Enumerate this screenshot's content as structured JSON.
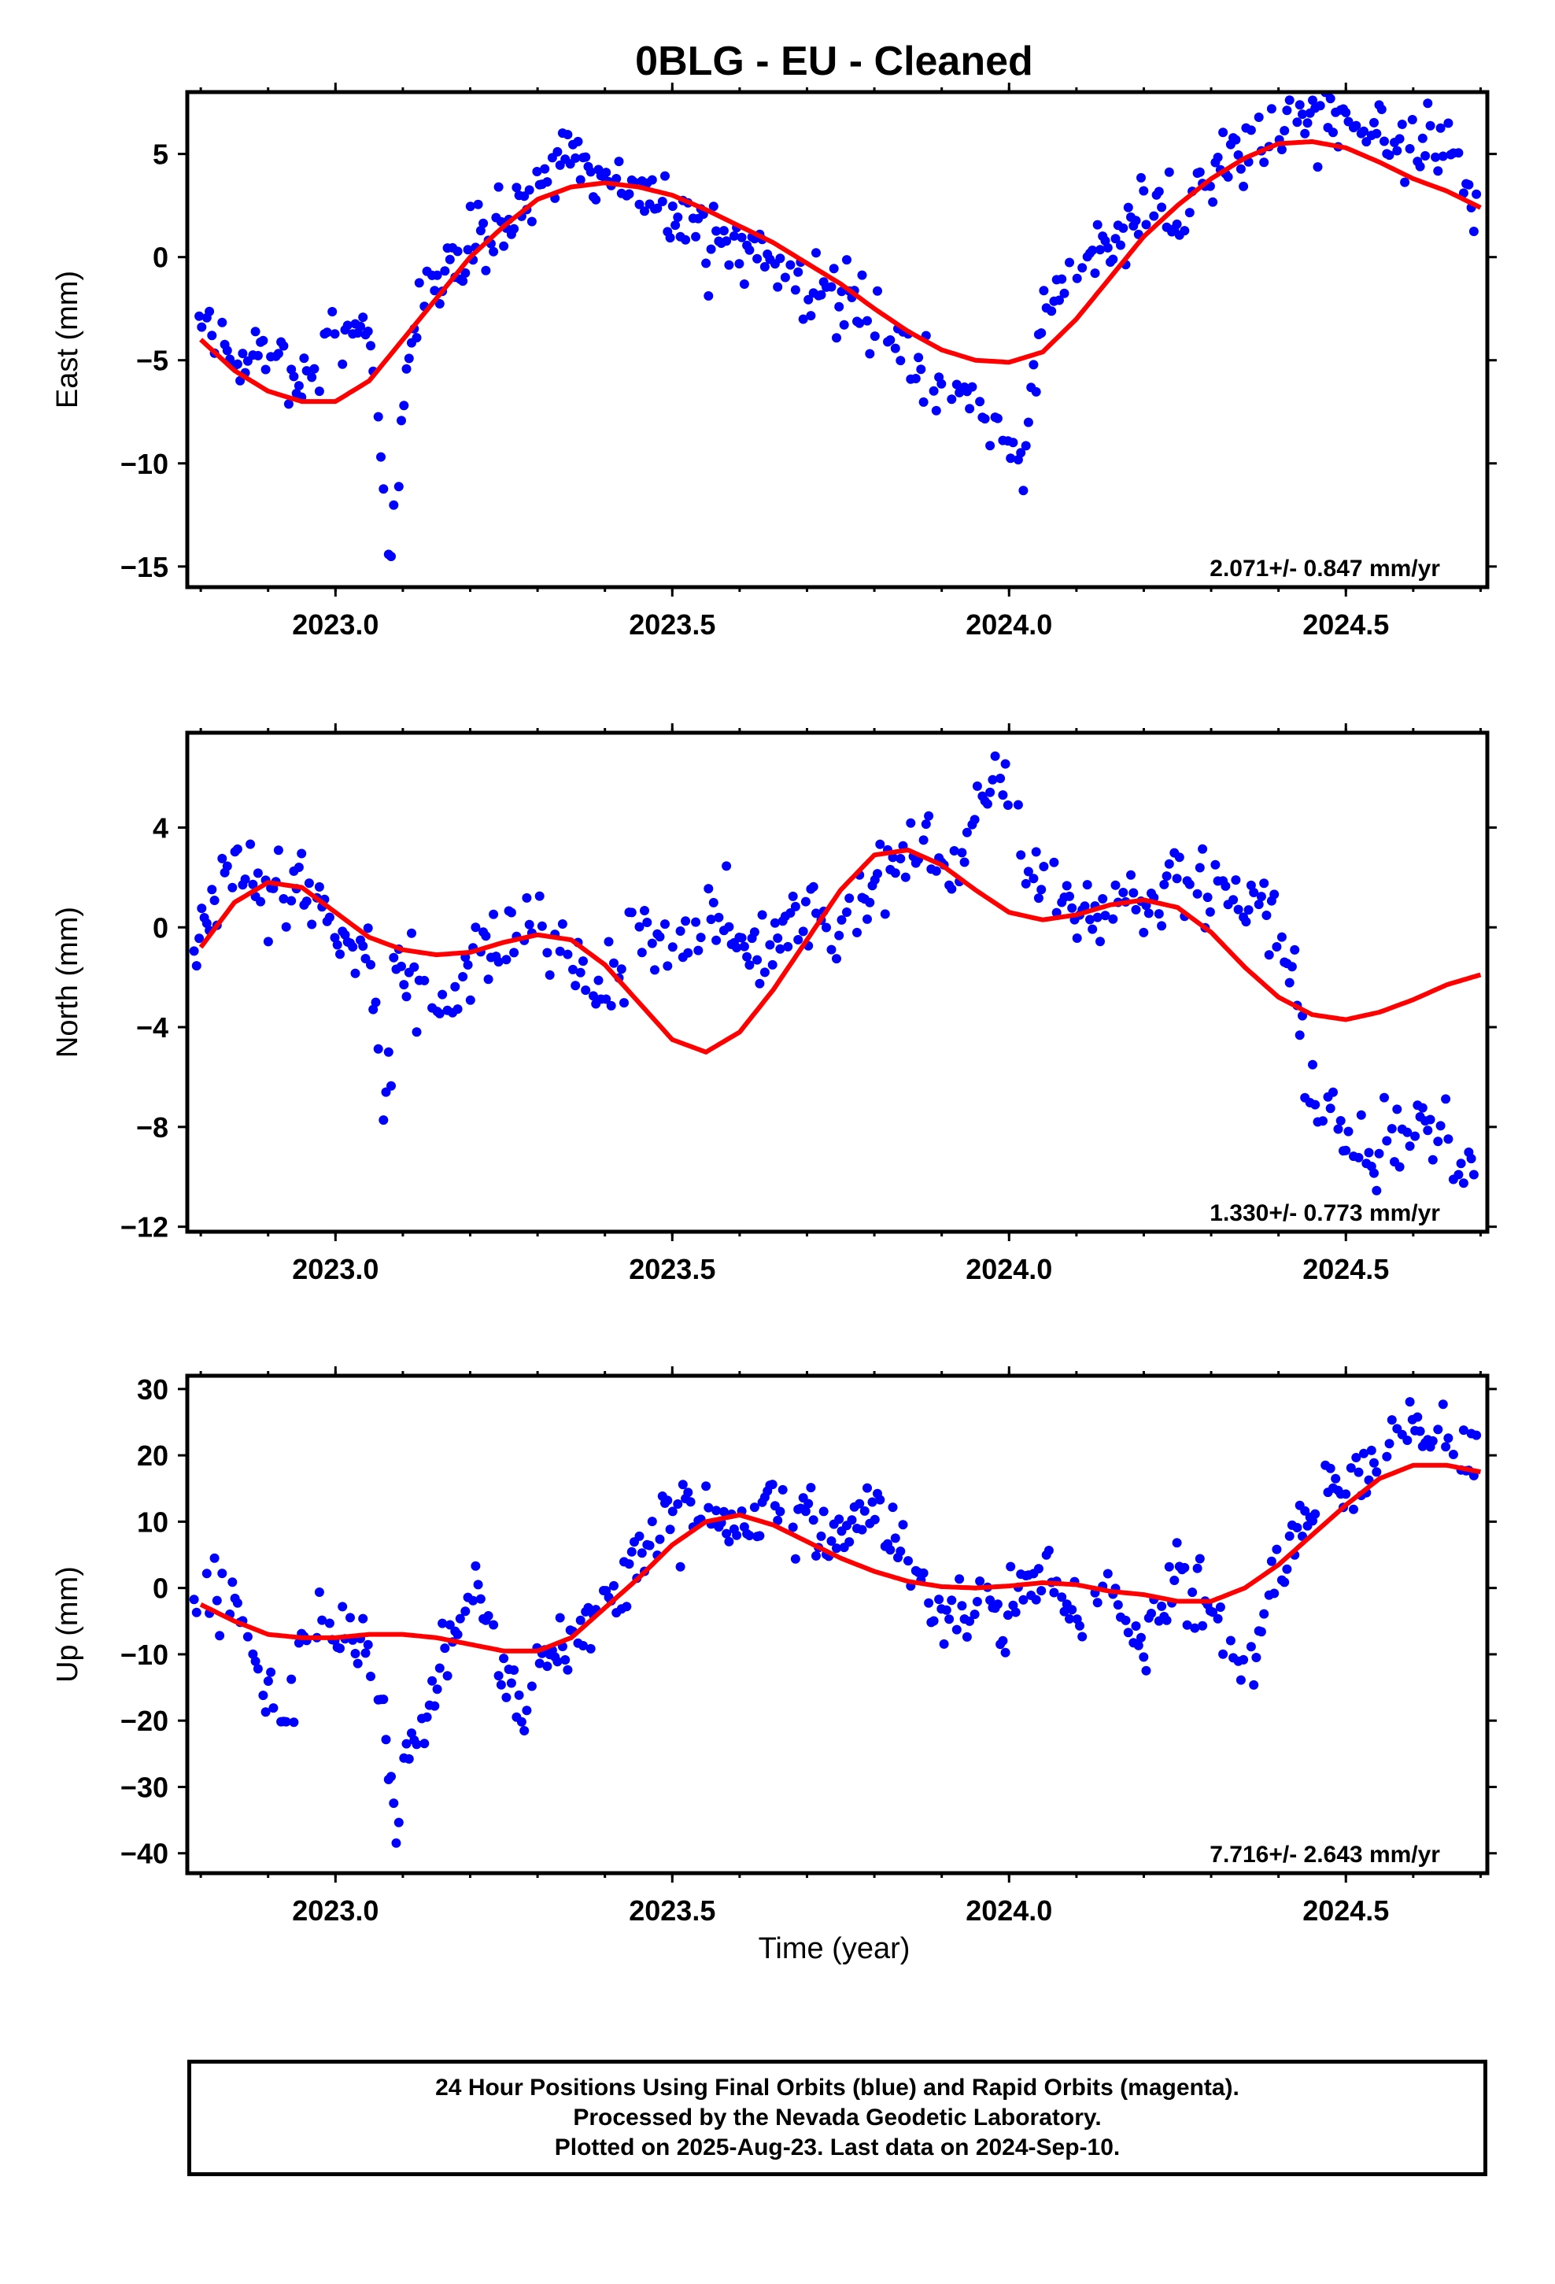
{
  "figure": {
    "title": "0BLG  - EU - Cleaned",
    "xlabel": "Time (year)",
    "colors": {
      "data_points": "#0000ff",
      "model_fit": "#ff0000",
      "frame": "#000000"
    }
  },
  "chart_data": [
    {
      "type": "scatter",
      "name": "east",
      "ylabel": "East (mm)",
      "rate_text": "2.071+/- 0.847 mm/yr",
      "xlim": [
        2022.78,
        2024.71
      ],
      "ylim": [
        -16,
        8
      ],
      "xticks": [
        "2023.0",
        "2023.5",
        "2024.0",
        "2024.5"
      ],
      "yticks": [
        "5",
        "0",
        "−5",
        "−10",
        "−15"
      ],
      "series": [
        {
          "values": {
            "x": [
              2022.8,
              2022.85,
              2022.9,
              2022.95,
              2023.0,
              2023.05,
              2023.08,
              2023.12,
              2023.16,
              2023.2,
              2023.25,
              2023.3,
              2023.35,
              2023.4,
              2023.45,
              2023.5,
              2023.55,
              2023.6,
              2023.65,
              2023.7,
              2023.75,
              2023.8,
              2023.85,
              2023.9,
              2023.93,
              2023.97,
              2024.0,
              2024.02,
              2024.05,
              2024.1,
              2024.15,
              2024.2,
              2024.25,
              2024.3,
              2024.35,
              2024.4,
              2024.45,
              2024.5,
              2024.55,
              2024.6,
              2024.65,
              2024.7
            ],
            "y": [
              -3.0,
              -5.0,
              -4.5,
              -6.0,
              -3.5,
              -3.5,
              -14.5,
              -2.0,
              -1.0,
              0.5,
              2.0,
              3.5,
              4.5,
              3.5,
              3.0,
              2.0,
              1.5,
              0.5,
              0.0,
              -1.0,
              -2.0,
              -3.0,
              -4.0,
              -6.0,
              -6.5,
              -7.5,
              -9.0,
              -10.5,
              -2.5,
              -0.5,
              1.0,
              2.5,
              2.5,
              3.5,
              5.0,
              6.5,
              7.0,
              6.5,
              6.0,
              5.5,
              5.0,
              2.0
            ]
          }
        },
        {
          "name": "model",
          "values": {
            "x": [
              2022.8,
              2022.85,
              2022.9,
              2022.95,
              2023.0,
              2023.05,
              2023.1,
              2023.15,
              2023.2,
              2023.25,
              2023.3,
              2023.35,
              2023.4,
              2023.45,
              2023.5,
              2023.55,
              2023.6,
              2023.65,
              2023.7,
              2023.75,
              2023.8,
              2023.85,
              2023.9,
              2023.95,
              2024.0,
              2024.05,
              2024.1,
              2024.15,
              2024.2,
              2024.25,
              2024.3,
              2024.35,
              2024.4,
              2024.45,
              2024.5,
              2024.55,
              2024.6,
              2024.65,
              2024.7
            ],
            "y": [
              -4.0,
              -5.5,
              -6.5,
              -7.0,
              -7.0,
              -6.0,
              -4.0,
              -2.0,
              0.0,
              1.5,
              2.8,
              3.4,
              3.6,
              3.4,
              3.0,
              2.3,
              1.5,
              0.7,
              -0.3,
              -1.3,
              -2.5,
              -3.6,
              -4.5,
              -5.0,
              -5.1,
              -4.6,
              -3.0,
              -1.0,
              1.0,
              2.5,
              3.8,
              4.8,
              5.5,
              5.6,
              5.3,
              4.6,
              3.8,
              3.2,
              2.4
            ]
          }
        }
      ]
    },
    {
      "type": "scatter",
      "name": "north",
      "ylabel": "North (mm)",
      "rate_text": "1.330+/- 0.773 mm/yr",
      "xlim": [
        2022.78,
        2024.71
      ],
      "ylim": [
        -12.2,
        7.8
      ],
      "xticks": [
        "2023.0",
        "2023.5",
        "2024.0",
        "2024.5"
      ],
      "yticks": [
        "4",
        "0",
        "−4",
        "−8",
        "−12"
      ],
      "series": [
        {
          "values": {
            "x": [
              2022.8,
              2022.85,
              2022.9,
              2022.95,
              2023.0,
              2023.05,
              2023.07,
              2023.1,
              2023.15,
              2023.2,
              2023.25,
              2023.3,
              2023.35,
              2023.4,
              2023.45,
              2023.5,
              2023.55,
              2023.6,
              2023.65,
              2023.7,
              2023.75,
              2023.8,
              2023.85,
              2023.9,
              2023.95,
              2023.98,
              2024.0,
              2024.05,
              2024.1,
              2024.15,
              2024.2,
              2024.25,
              2024.3,
              2024.35,
              2024.4,
              2024.45,
              2024.5,
              2024.55,
              2024.6,
              2024.65,
              2024.7
            ],
            "y": [
              0.0,
              2.5,
              1.5,
              2.0,
              0.0,
              -1.0,
              -6.0,
              -1.0,
              -4.5,
              -1.0,
              -0.5,
              0.5,
              -1.5,
              -2.0,
              0.0,
              -1.5,
              0.5,
              -1.0,
              -0.5,
              0.5,
              0.0,
              1.5,
              3.0,
              2.5,
              4.0,
              6.5,
              5.0,
              1.0,
              0.5,
              0.0,
              1.0,
              1.5,
              1.5,
              0.5,
              0.5,
              -6.5,
              -8.0,
              -9.0,
              -7.5,
              -8.5,
              -9.5
            ]
          }
        },
        {
          "name": "model",
          "values": {
            "x": [
              2022.8,
              2022.85,
              2022.9,
              2022.95,
              2023.0,
              2023.05,
              2023.1,
              2023.15,
              2023.2,
              2023.25,
              2023.3,
              2023.35,
              2023.4,
              2023.45,
              2023.5,
              2023.55,
              2023.6,
              2023.65,
              2023.7,
              2023.75,
              2023.8,
              2023.85,
              2023.9,
              2023.95,
              2024.0,
              2024.05,
              2024.1,
              2024.15,
              2024.2,
              2024.25,
              2024.3,
              2024.35,
              2024.4,
              2024.45,
              2024.5,
              2024.55,
              2024.6,
              2024.65,
              2024.7
            ],
            "y": [
              -0.8,
              1.0,
              1.8,
              1.6,
              0.6,
              -0.4,
              -0.9,
              -1.1,
              -1.0,
              -0.6,
              -0.3,
              -0.5,
              -1.5,
              -3.0,
              -4.5,
              -5.0,
              -4.2,
              -2.5,
              -0.5,
              1.5,
              2.9,
              3.1,
              2.5,
              1.5,
              0.6,
              0.3,
              0.5,
              0.9,
              1.1,
              0.8,
              -0.2,
              -1.6,
              -2.8,
              -3.5,
              -3.7,
              -3.4,
              -2.9,
              -2.3,
              -1.9
            ]
          }
        }
      ]
    },
    {
      "type": "scatter",
      "name": "up",
      "ylabel": "Up (mm)",
      "rate_text": "7.716+/- 2.643 mm/yr",
      "xlim": [
        2022.78,
        2024.71
      ],
      "ylim": [
        -43,
        32
      ],
      "xticks": [
        "2023.0",
        "2023.5",
        "2024.0",
        "2024.5"
      ],
      "yticks": [
        "30",
        "20",
        "10",
        "0",
        "−10",
        "−20",
        "−30",
        "−40"
      ],
      "series": [
        {
          "values": {
            "x": [
              2022.8,
              2022.85,
              2022.88,
              2022.92,
              2022.95,
              2023.0,
              2023.03,
              2023.07,
              2023.09,
              2023.1,
              2023.15,
              2023.2,
              2023.25,
              2023.28,
              2023.3,
              2023.35,
              2023.4,
              2023.45,
              2023.5,
              2023.55,
              2023.6,
              2023.65,
              2023.7,
              2023.75,
              2023.8,
              2023.85,
              2023.9,
              2023.95,
              2024.0,
              2024.05,
              2024.1,
              2024.15,
              2024.2,
              2024.25,
              2024.3,
              2024.35,
              2024.4,
              2024.45,
              2024.5,
              2024.55,
              2024.6,
              2024.65,
              2024.7
            ],
            "y": [
              0,
              -2,
              -10,
              -22,
              -8,
              -5,
              -8,
              -15,
              -40,
              -30,
              -12,
              0,
              -10,
              -18,
              -12,
              -8,
              -3,
              5,
              10,
              12,
              8,
              15,
              10,
              8,
              12,
              5,
              -5,
              0,
              -5,
              5,
              -5,
              0,
              -8,
              0,
              -3,
              -12,
              2,
              12,
              15,
              20,
              25,
              22,
              20
            ]
          }
        },
        {
          "name": "model",
          "values": {
            "x": [
              2022.8,
              2022.85,
              2022.9,
              2022.95,
              2023.0,
              2023.05,
              2023.1,
              2023.15,
              2023.2,
              2023.25,
              2023.3,
              2023.35,
              2023.4,
              2023.45,
              2023.5,
              2023.55,
              2023.6,
              2023.65,
              2023.7,
              2023.75,
              2023.8,
              2023.85,
              2023.9,
              2023.95,
              2024.0,
              2024.05,
              2024.1,
              2024.15,
              2024.2,
              2024.25,
              2024.3,
              2024.35,
              2024.4,
              2024.45,
              2024.5,
              2024.55,
              2024.6,
              2024.65,
              2024.7
            ],
            "y": [
              -2.5,
              -5.0,
              -7.0,
              -7.5,
              -7.5,
              -7.0,
              -7.0,
              -7.5,
              -8.5,
              -9.5,
              -9.5,
              -7.5,
              -3.0,
              1.5,
              6.5,
              10.0,
              11.0,
              9.5,
              7.0,
              4.5,
              2.5,
              1.0,
              0.2,
              0.0,
              0.3,
              0.8,
              0.5,
              -0.5,
              -1.0,
              -2.0,
              -2.0,
              0.0,
              3.5,
              8.0,
              12.5,
              16.5,
              18.5,
              18.5,
              17.5
            ]
          }
        }
      ]
    }
  ],
  "footer": {
    "line1": "24 Hour Positions Using Final Orbits (blue) and Rapid Orbits (magenta).",
    "line2": "Processed by the Nevada Geodetic Laboratory.",
    "line3": "Plotted on 2025-Aug-23. Last data on 2024-Sep-10."
  }
}
